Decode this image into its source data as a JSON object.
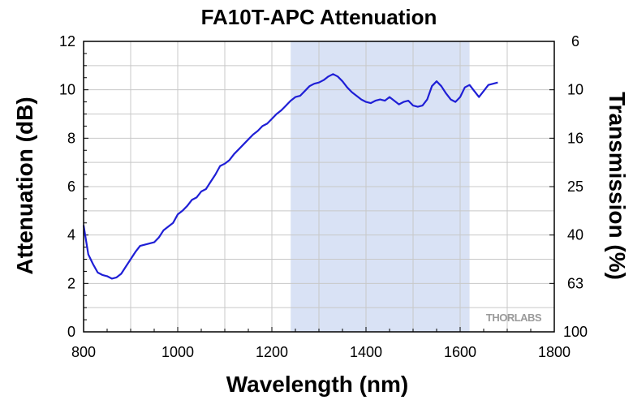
{
  "chart_data": {
    "type": "line",
    "title": "FA10T-APC Attenuation",
    "xlabel": "Wavelength (nm)",
    "ylabel": "Attenuation (dB)",
    "y2label": "Transmission (%)",
    "xlim": [
      800,
      1800
    ],
    "ylim": [
      0,
      12
    ],
    "grid": true,
    "x_ticks": [
      800,
      1000,
      1200,
      1400,
      1600,
      1800
    ],
    "y_ticks": [
      0,
      2,
      4,
      6,
      8,
      10,
      12
    ],
    "y2_ticks": [
      {
        "label": "100",
        "attenuation_db": 0
      },
      {
        "label": "63",
        "attenuation_db": 2
      },
      {
        "label": "40",
        "attenuation_db": 4
      },
      {
        "label": "25",
        "attenuation_db": 6
      },
      {
        "label": "16",
        "attenuation_db": 8
      },
      {
        "label": "10",
        "attenuation_db": 10
      },
      {
        "label": "6",
        "attenuation_db": 12
      }
    ],
    "shaded_range": {
      "x": [
        1240,
        1620
      ],
      "color": "#d9e2f5"
    },
    "series": [
      {
        "color": "#1f1fd6",
        "x": [
          800,
          805,
          810,
          820,
          830,
          840,
          850,
          860,
          870,
          880,
          890,
          900,
          910,
          920,
          930,
          940,
          950,
          960,
          970,
          980,
          990,
          1000,
          1010,
          1020,
          1030,
          1040,
          1050,
          1060,
          1070,
          1080,
          1090,
          1100,
          1110,
          1120,
          1130,
          1140,
          1150,
          1160,
          1170,
          1180,
          1190,
          1200,
          1210,
          1220,
          1230,
          1240,
          1250,
          1260,
          1270,
          1280,
          1290,
          1300,
          1310,
          1320,
          1330,
          1340,
          1350,
          1360,
          1370,
          1380,
          1390,
          1400,
          1410,
          1420,
          1430,
          1440,
          1450,
          1460,
          1470,
          1480,
          1490,
          1500,
          1510,
          1520,
          1530,
          1540,
          1550,
          1560,
          1570,
          1580,
          1590,
          1600,
          1610,
          1620,
          1630,
          1640,
          1650,
          1660,
          1670,
          1680
        ],
        "y": [
          4.4,
          3.8,
          3.2,
          2.8,
          2.45,
          2.35,
          2.3,
          2.2,
          2.25,
          2.4,
          2.7,
          3.0,
          3.3,
          3.55,
          3.6,
          3.65,
          3.7,
          3.9,
          4.2,
          4.35,
          4.5,
          4.85,
          5.0,
          5.2,
          5.45,
          5.55,
          5.8,
          5.9,
          6.2,
          6.5,
          6.85,
          6.95,
          7.1,
          7.35,
          7.55,
          7.75,
          7.95,
          8.15,
          8.3,
          8.5,
          8.6,
          8.8,
          9.0,
          9.15,
          9.35,
          9.55,
          9.7,
          9.75,
          9.95,
          10.15,
          10.25,
          10.3,
          10.4,
          10.55,
          10.65,
          10.55,
          10.35,
          10.1,
          9.9,
          9.75,
          9.6,
          9.5,
          9.45,
          9.55,
          9.6,
          9.55,
          9.7,
          9.55,
          9.4,
          9.5,
          9.55,
          9.35,
          9.3,
          9.35,
          9.6,
          10.15,
          10.35,
          10.15,
          9.85,
          9.6,
          9.5,
          9.7,
          10.1,
          10.2,
          9.95,
          9.7,
          9.95,
          10.2,
          10.25,
          10.3
        ]
      }
    ]
  },
  "watermark": "THORLABS"
}
